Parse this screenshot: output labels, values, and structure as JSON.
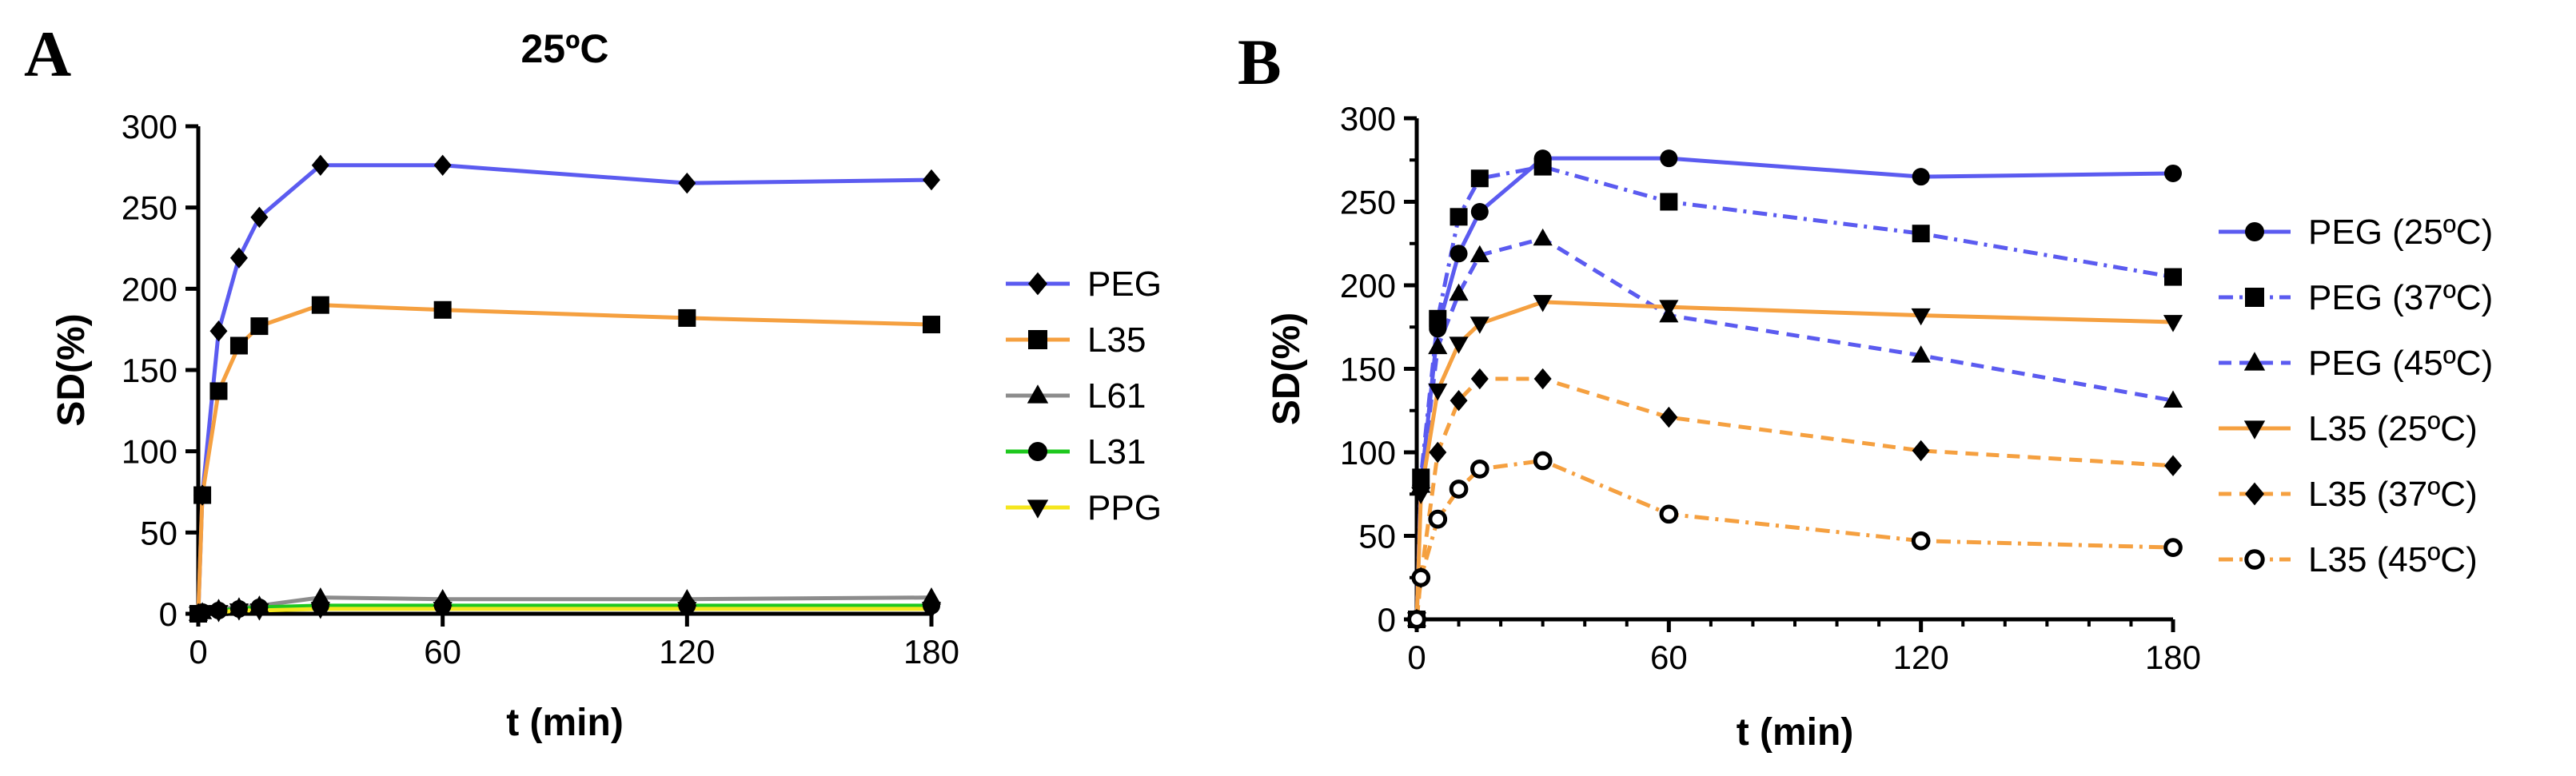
{
  "chart_data": [
    {
      "panel": "A",
      "type": "line",
      "title": "25ºC",
      "xlabel": "t (min)",
      "ylabel": "SD(%)",
      "xlim": [
        0,
        180
      ],
      "ylim": [
        0,
        300
      ],
      "x_ticks": [
        0,
        60,
        120,
        180
      ],
      "y_ticks": [
        0,
        50,
        100,
        150,
        200,
        250,
        300
      ],
      "x_tick_labels": [
        "0",
        "60",
        "120",
        "180"
      ],
      "y_tick_labels": [
        "0",
        "50",
        "100",
        "150",
        "200",
        "250",
        "300"
      ],
      "legend_position": "right",
      "x": [
        0,
        1,
        5,
        10,
        15,
        30,
        60,
        120,
        180
      ],
      "series": [
        {
          "name": "PEG",
          "color": "#5b5bf0",
          "marker": "diamond",
          "dash": "solid",
          "values": [
            0,
            73,
            174,
            219,
            244,
            276,
            276,
            265,
            267
          ]
        },
        {
          "name": "L35",
          "color": "#f5a040",
          "marker": "square",
          "dash": "solid",
          "values": [
            0,
            73,
            137,
            165,
            177,
            190,
            187,
            182,
            178
          ]
        },
        {
          "name": "L61",
          "color": "#8c8c8c",
          "marker": "triangle",
          "dash": "solid",
          "values": [
            0,
            1,
            3,
            4,
            5,
            10,
            9,
            9,
            10
          ]
        },
        {
          "name": "L31",
          "color": "#1ec81e",
          "marker": "circle",
          "dash": "solid",
          "values": [
            0,
            1,
            2,
            3,
            4,
            5,
            5,
            5,
            5
          ]
        },
        {
          "name": "PPG",
          "color": "#f5e61e",
          "marker": "triangle-down",
          "dash": "solid",
          "values": [
            0,
            1,
            1,
            2,
            2,
            3,
            3,
            3,
            3
          ]
        }
      ]
    },
    {
      "panel": "B",
      "type": "line",
      "title": "",
      "xlabel": "t (min)",
      "ylabel": "SD(%)",
      "xlim": [
        0,
        180
      ],
      "ylim": [
        0,
        300
      ],
      "x_ticks": [
        0,
        60,
        120,
        180
      ],
      "y_ticks": [
        0,
        50,
        100,
        150,
        200,
        250,
        300
      ],
      "x_tick_labels": [
        "0",
        "60",
        "120",
        "180"
      ],
      "y_tick_labels": [
        "0",
        "50",
        "100",
        "150",
        "200",
        "250",
        "300"
      ],
      "legend_position": "right",
      "x": [
        0,
        1,
        5,
        10,
        15,
        30,
        60,
        120,
        180
      ],
      "series": [
        {
          "name": "PEG (25ºC)",
          "color": "#5b5bf0",
          "marker": "circle",
          "dash": "solid",
          "values": [
            0,
            80,
            174,
            219,
            244,
            276,
            276,
            265,
            267
          ]
        },
        {
          "name": "PEG (37ºC)",
          "color": "#5b5bf0",
          "marker": "square",
          "dash": "dashdot",
          "values": [
            0,
            85,
            180,
            241,
            264,
            271,
            250,
            231,
            205
          ]
        },
        {
          "name": "PEG (45ºC)",
          "color": "#5b5bf0",
          "marker": "triangle",
          "dash": "dashed",
          "values": [
            0,
            80,
            163,
            195,
            218,
            228,
            182,
            158,
            131
          ]
        },
        {
          "name": "L35 (25ºC)",
          "color": "#f5a040",
          "marker": "triangle-down",
          "dash": "solid",
          "values": [
            0,
            75,
            137,
            165,
            177,
            190,
            187,
            182,
            178
          ]
        },
        {
          "name": "L35 (37ºC)",
          "color": "#f5a040",
          "marker": "diamond",
          "dash": "dashed",
          "values": [
            0,
            25,
            100,
            131,
            144,
            144,
            121,
            101,
            92
          ]
        },
        {
          "name": "L35 (45ºC)",
          "color": "#f5a040",
          "marker": "circle-open",
          "dash": "dashdot",
          "values": [
            0,
            25,
            60,
            78,
            90,
            95,
            63,
            47,
            43
          ]
        }
      ]
    }
  ]
}
